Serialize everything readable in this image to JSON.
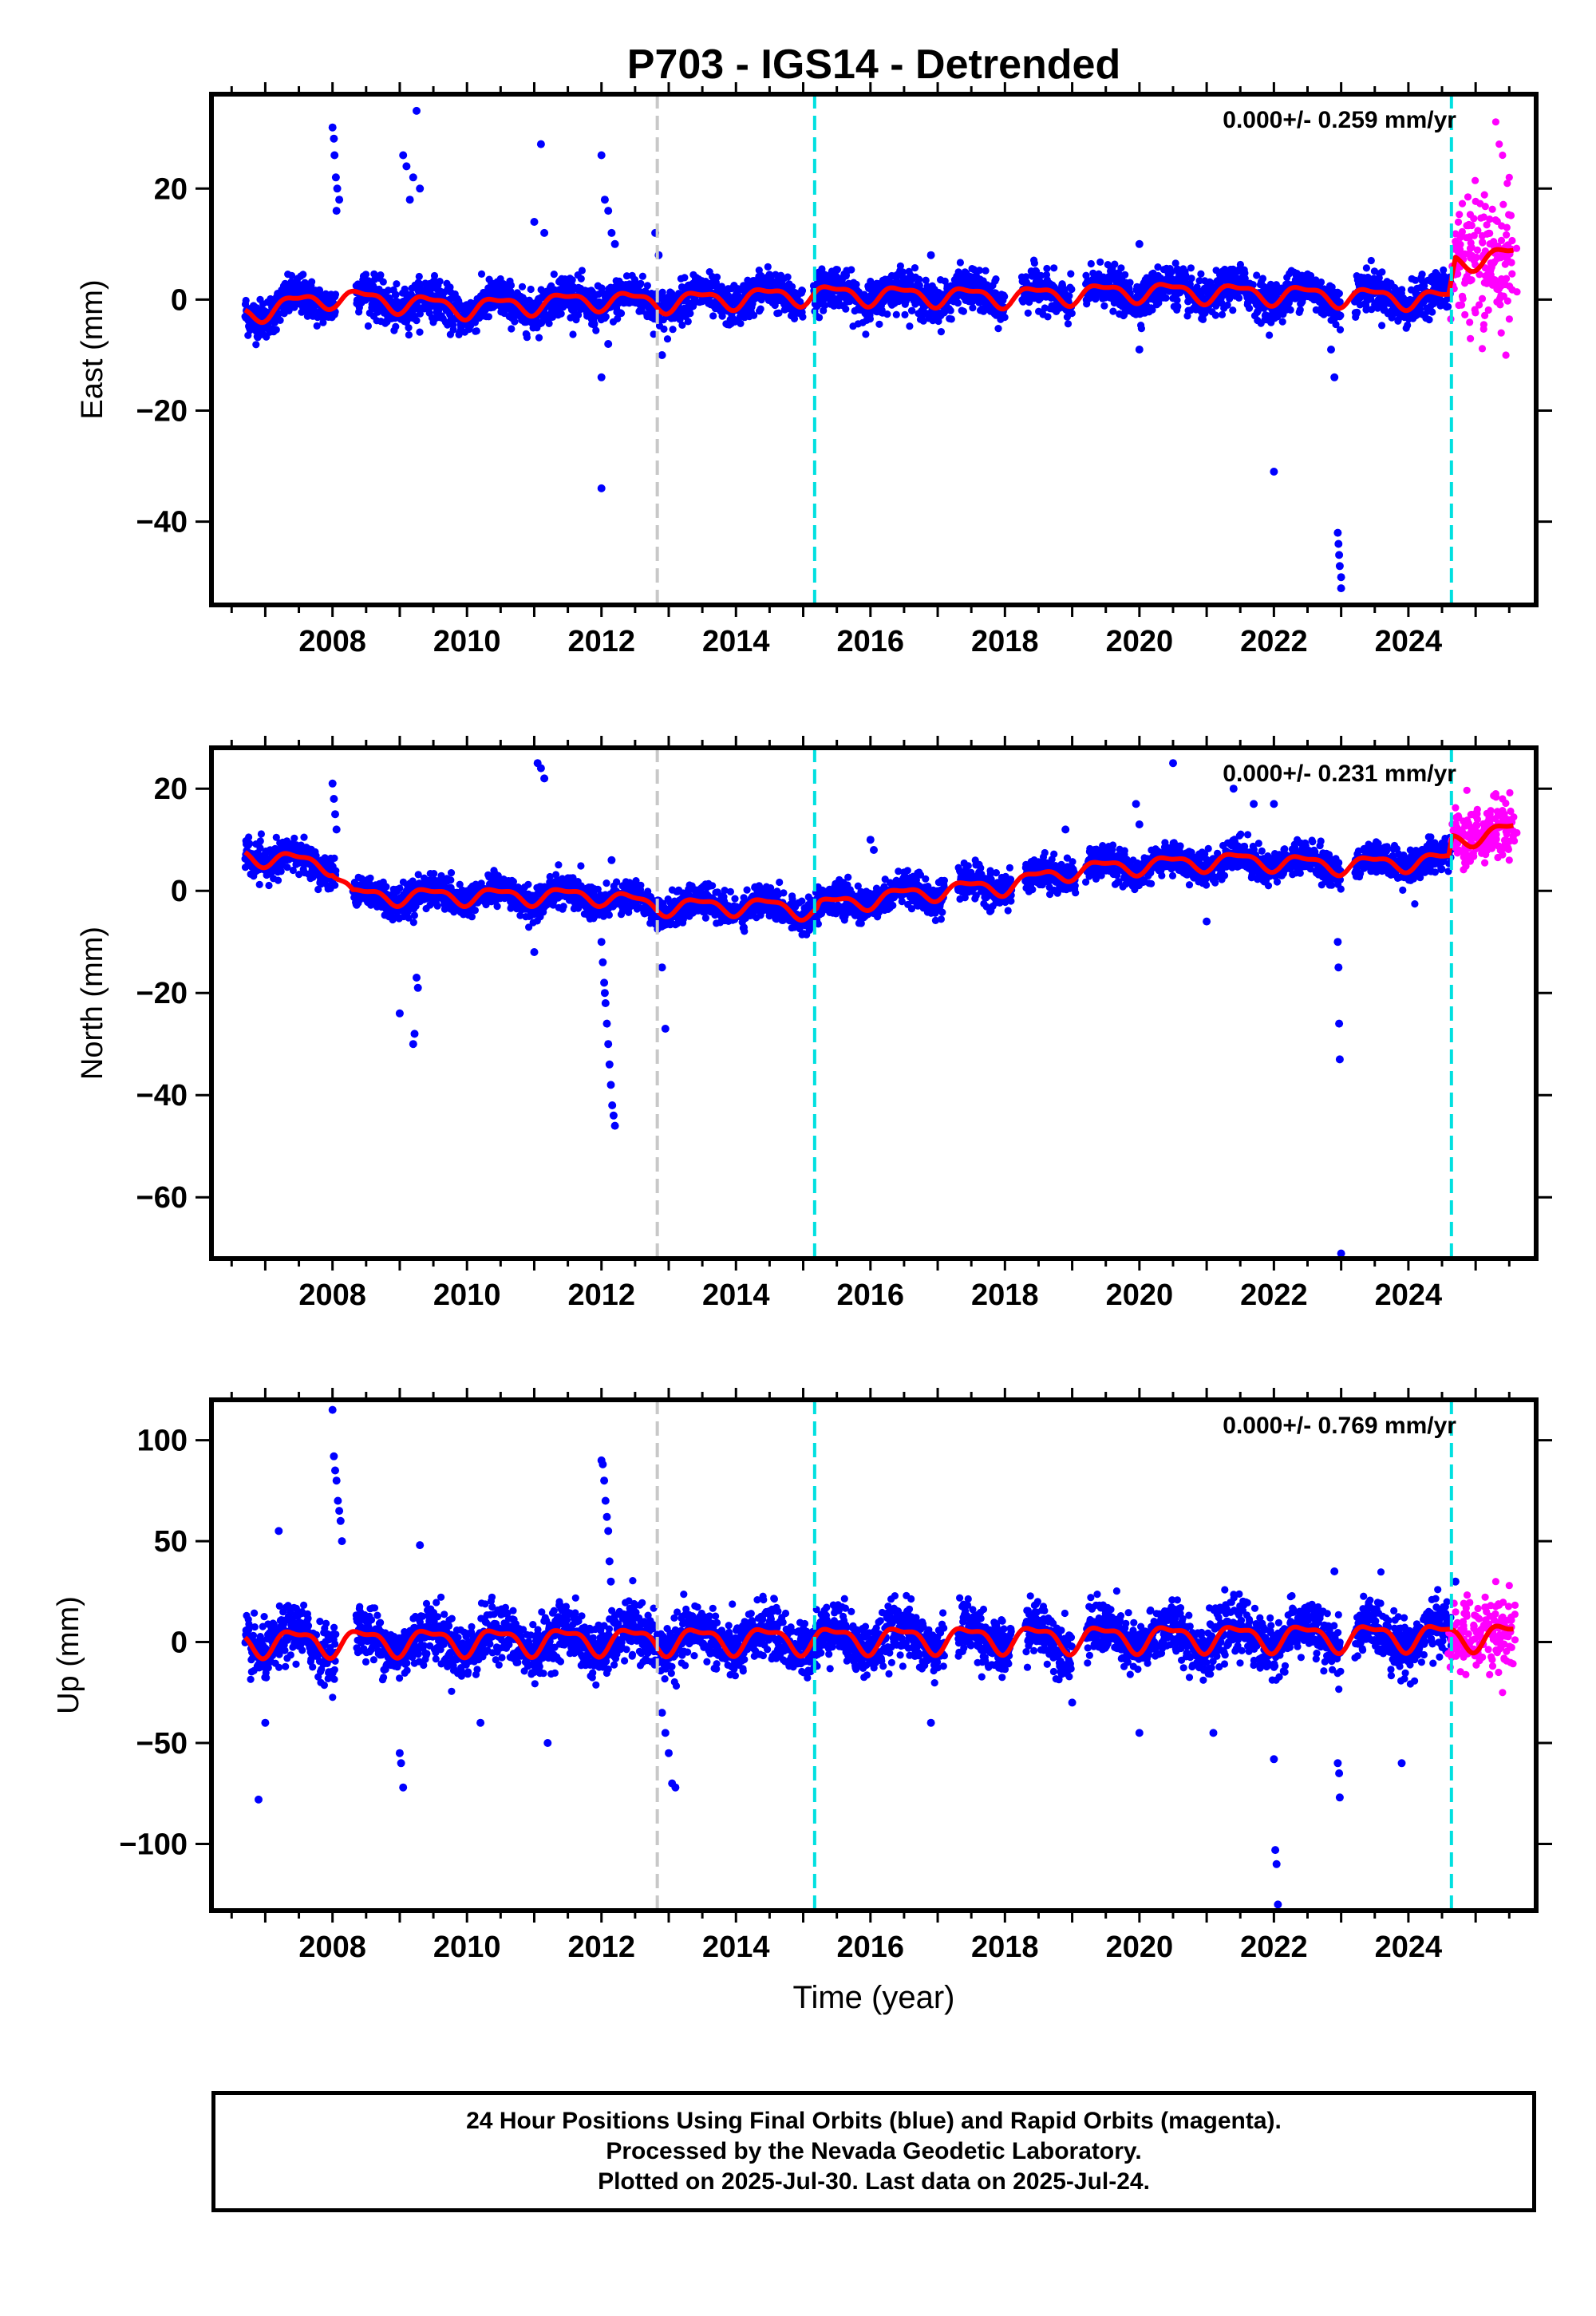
{
  "title": "P703 - IGS14 - Detrended",
  "footer": [
    "24 Hour Positions Using Final Orbits (blue) and Rapid Orbits (magenta).",
    "Processed by the Nevada Geodetic Laboratory.",
    "Plotted on 2025-Jul-30. Last data on 2025-Jul-24."
  ],
  "colors": {
    "final": "#0000ff",
    "rapid": "#ff00ff",
    "model": "#ff0000",
    "equipment_change": "#c8c8c8",
    "antenna_change": "#00e0e0"
  },
  "chart_data": [
    {
      "type": "scatter",
      "panel": "east",
      "ylabel": "East (mm)",
      "rate_text": "0.000+/- 0.259 mm/yr",
      "xlim": [
        2006.2,
        2025.9
      ],
      "ylim": [
        -55,
        37
      ],
      "yticks": [
        20,
        0,
        -20,
        -40
      ],
      "xticks": [
        2008,
        2010,
        2012,
        2014,
        2016,
        2018,
        2020,
        2022,
        2024
      ],
      "amp": 3.2,
      "model_amp": 1.6,
      "levels": [
        [
          2006.7,
          -2.5
        ],
        [
          2008.0,
          0.5
        ],
        [
          2010.0,
          -1.5
        ],
        [
          2012.0,
          0
        ],
        [
          2012.8,
          -0.5
        ],
        [
          2015.2,
          1
        ],
        [
          2018.0,
          0.5
        ],
        [
          2020.0,
          1.5
        ],
        [
          2022.0,
          1
        ],
        [
          2024.6,
          0
        ],
        [
          2024.7,
          7
        ],
        [
          2025.6,
          8
        ]
      ],
      "gaps": [
        [
          2008.05,
          2008.35
        ],
        [
          2015.0,
          2015.15
        ],
        [
          2018.0,
          2018.25
        ],
        [
          2019.0,
          2019.2
        ],
        [
          2023.0,
          2023.2
        ]
      ],
      "outliers": [
        [
          2008.0,
          31
        ],
        [
          2008.02,
          29
        ],
        [
          2008.03,
          26
        ],
        [
          2008.05,
          22
        ],
        [
          2008.07,
          20
        ],
        [
          2008.1,
          18
        ],
        [
          2008.06,
          16
        ],
        [
          2009.05,
          26
        ],
        [
          2009.1,
          24
        ],
        [
          2009.15,
          18
        ],
        [
          2009.2,
          22
        ],
        [
          2009.25,
          34
        ],
        [
          2009.3,
          20
        ],
        [
          2011.1,
          28
        ],
        [
          2011.0,
          14
        ],
        [
          2011.15,
          12
        ],
        [
          2012.0,
          26
        ],
        [
          2012.05,
          18
        ],
        [
          2012.1,
          16
        ],
        [
          2012.15,
          12
        ],
        [
          2012.2,
          10
        ],
        [
          2012.0,
          -14
        ],
        [
          2012.0,
          -34
        ],
        [
          2012.1,
          -8
        ],
        [
          2012.8,
          12
        ],
        [
          2012.85,
          8
        ],
        [
          2012.9,
          -10
        ],
        [
          2022.0,
          -31
        ],
        [
          2022.95,
          -42
        ],
        [
          2022.96,
          -44
        ],
        [
          2022.97,
          -46
        ],
        [
          2022.98,
          -48
        ],
        [
          2023.0,
          -50
        ],
        [
          2023.0,
          -52
        ],
        [
          2022.9,
          -14
        ],
        [
          2022.85,
          -9
        ],
        [
          2020.0,
          -9
        ],
        [
          2020.0,
          10
        ],
        [
          2016.9,
          8
        ]
      ],
      "rapid_spread": 9,
      "rapid_outliers": [
        [
          2025.3,
          32
        ],
        [
          2025.35,
          28
        ],
        [
          2025.4,
          26
        ],
        [
          2025.45,
          -10
        ],
        [
          2025.5,
          22
        ],
        [
          2025.38,
          -6
        ]
      ]
    },
    {
      "type": "scatter",
      "panel": "north",
      "ylabel": "North (mm)",
      "rate_text": "0.000+/- 0.231 mm/yr",
      "xlim": [
        2006.2,
        2025.9
      ],
      "ylim": [
        -72,
        28
      ],
      "yticks": [
        20,
        0,
        -20,
        -40,
        -60
      ],
      "xticks": [
        2008,
        2010,
        2012,
        2014,
        2016,
        2018,
        2020,
        2022,
        2024
      ],
      "amp": 2.8,
      "model_amp": 1.5,
      "levels": [
        [
          2006.7,
          7
        ],
        [
          2008.0,
          5
        ],
        [
          2008.3,
          -1
        ],
        [
          2010.0,
          -1
        ],
        [
          2012.0,
          -1
        ],
        [
          2012.8,
          -3
        ],
        [
          2014.5,
          -3
        ],
        [
          2015.2,
          -4
        ],
        [
          2015.25,
          -3
        ],
        [
          2017.0,
          0
        ],
        [
          2018.0,
          1
        ],
        [
          2019.0,
          4
        ],
        [
          2020.0,
          5
        ],
        [
          2021.5,
          6
        ],
        [
          2023.0,
          5
        ],
        [
          2024.6,
          6
        ],
        [
          2024.65,
          10
        ],
        [
          2025.6,
          12
        ]
      ],
      "gaps": [
        [
          2008.05,
          2008.3
        ],
        [
          2017.1,
          2017.3
        ],
        [
          2018.1,
          2018.3
        ],
        [
          2019.05,
          2019.2
        ],
        [
          2023.0,
          2023.2
        ]
      ],
      "outliers": [
        [
          2008.0,
          21
        ],
        [
          2008.02,
          18
        ],
        [
          2008.04,
          15
        ],
        [
          2008.06,
          12
        ],
        [
          2009.0,
          -24
        ],
        [
          2009.2,
          -30
        ],
        [
          2009.22,
          -28
        ],
        [
          2009.25,
          -17
        ],
        [
          2009.27,
          -19
        ],
        [
          2011.05,
          25
        ],
        [
          2011.1,
          24
        ],
        [
          2011.15,
          22
        ],
        [
          2011.0,
          -12
        ],
        [
          2012.0,
          -10
        ],
        [
          2012.02,
          -14
        ],
        [
          2012.04,
          -18
        ],
        [
          2012.06,
          -22
        ],
        [
          2012.08,
          -26
        ],
        [
          2012.1,
          -30
        ],
        [
          2012.12,
          -34
        ],
        [
          2012.14,
          -38
        ],
        [
          2012.16,
          -42
        ],
        [
          2012.18,
          -44
        ],
        [
          2012.2,
          -46
        ],
        [
          2012.05,
          -20
        ],
        [
          2012.15,
          6
        ],
        [
          2012.9,
          -15
        ],
        [
          2012.95,
          -27
        ],
        [
          2016.0,
          10
        ],
        [
          2016.05,
          8
        ],
        [
          2018.9,
          12
        ],
        [
          2019.95,
          17
        ],
        [
          2020.0,
          13
        ],
        [
          2020.5,
          25
        ],
        [
          2021.4,
          20
        ],
        [
          2021.7,
          17
        ],
        [
          2022.0,
          17
        ],
        [
          2022.95,
          -10
        ],
        [
          2022.96,
          -15
        ],
        [
          2022.97,
          -26
        ],
        [
          2022.98,
          -33
        ],
        [
          2023.0,
          -71
        ],
        [
          2021.0,
          -6
        ]
      ],
      "rapid_spread": 5,
      "rapid_outliers": [
        [
          2025.3,
          19
        ],
        [
          2025.4,
          18
        ],
        [
          2025.5,
          6
        ]
      ]
    },
    {
      "type": "scatter",
      "panel": "up",
      "ylabel": "Up (mm)",
      "xlabel": "Time (year)",
      "rate_text": "0.000+/- 0.769 mm/yr",
      "xlim": [
        2006.2,
        2025.9
      ],
      "ylim": [
        -133,
        120
      ],
      "yticks": [
        100,
        50,
        0,
        -50,
        -100
      ],
      "xticks": [
        2008,
        2010,
        2012,
        2014,
        2016,
        2018,
        2020,
        2022,
        2024
      ],
      "amp": 12,
      "model_amp": 6,
      "levels": [
        [
          2006.7,
          0
        ],
        [
          2025.6,
          3
        ]
      ],
      "gaps": [
        [
          2008.05,
          2008.35
        ],
        [
          2017.1,
          2017.3
        ],
        [
          2018.1,
          2018.3
        ],
        [
          2019.0,
          2019.2
        ],
        [
          2023.0,
          2023.2
        ]
      ],
      "outliers": [
        [
          2006.9,
          -78
        ],
        [
          2007.0,
          -40
        ],
        [
          2007.2,
          55
        ],
        [
          2008.0,
          115
        ],
        [
          2008.02,
          92
        ],
        [
          2008.04,
          85
        ],
        [
          2008.06,
          80
        ],
        [
          2008.08,
          70
        ],
        [
          2008.1,
          65
        ],
        [
          2008.12,
          60
        ],
        [
          2008.14,
          50
        ],
        [
          2009.0,
          -55
        ],
        [
          2009.02,
          -60
        ],
        [
          2009.05,
          -72
        ],
        [
          2009.3,
          48
        ],
        [
          2010.2,
          -40
        ],
        [
          2011.2,
          -50
        ],
        [
          2012.0,
          90
        ],
        [
          2012.02,
          88
        ],
        [
          2012.04,
          80
        ],
        [
          2012.06,
          70
        ],
        [
          2012.08,
          62
        ],
        [
          2012.1,
          55
        ],
        [
          2012.12,
          40
        ],
        [
          2012.14,
          30
        ],
        [
          2012.9,
          -35
        ],
        [
          2012.95,
          -45
        ],
        [
          2013.0,
          -55
        ],
        [
          2013.05,
          -70
        ],
        [
          2013.1,
          -72
        ],
        [
          2016.9,
          -40
        ],
        [
          2019.0,
          -30
        ],
        [
          2020.0,
          -45
        ],
        [
          2021.1,
          -45
        ],
        [
          2022.0,
          -58
        ],
        [
          2022.02,
          -103
        ],
        [
          2022.04,
          -110
        ],
        [
          2022.06,
          -130
        ],
        [
          2022.9,
          35
        ],
        [
          2022.95,
          -60
        ],
        [
          2022.97,
          -65
        ],
        [
          2022.98,
          -77
        ],
        [
          2023.9,
          -60
        ],
        [
          2024.7,
          30
        ]
      ],
      "rapid_spread": 14,
      "rapid_outliers": [
        [
          2025.3,
          30
        ],
        [
          2025.4,
          -25
        ],
        [
          2025.5,
          28
        ]
      ]
    }
  ],
  "vlines": [
    {
      "x": 2012.83,
      "color": "equipment_change"
    },
    {
      "x": 2015.17,
      "color": "antenna_change"
    },
    {
      "x": 2024.64,
      "color": "antenna_change"
    }
  ],
  "final_range": [
    2006.7,
    2024.64
  ],
  "rapid_range": [
    2024.66,
    2025.56
  ]
}
